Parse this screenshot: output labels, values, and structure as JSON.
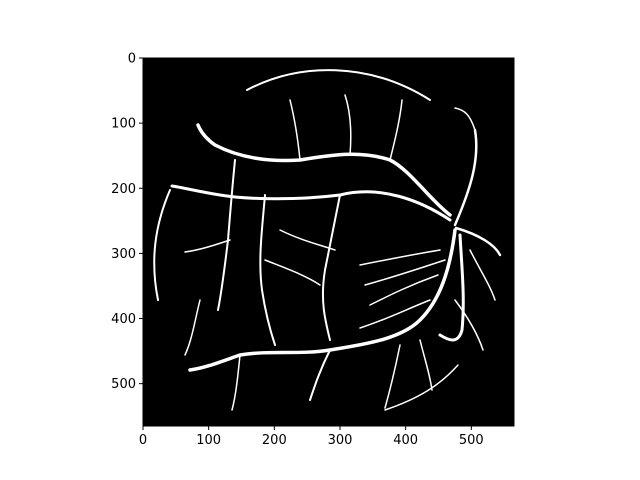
{
  "figure": {
    "x_axis": {
      "range": [
        0,
        565
      ],
      "ticks": [
        {
          "value": 0,
          "label": "0"
        },
        {
          "value": 100,
          "label": "100"
        },
        {
          "value": 200,
          "label": "200"
        },
        {
          "value": 300,
          "label": "300"
        },
        {
          "value": 400,
          "label": "400"
        },
        {
          "value": 500,
          "label": "500"
        }
      ]
    },
    "y_axis": {
      "range": [
        0,
        565
      ],
      "inverted": true,
      "ticks": [
        {
          "value": 0,
          "label": "0"
        },
        {
          "value": 100,
          "label": "100"
        },
        {
          "value": 200,
          "label": "200"
        },
        {
          "value": 300,
          "label": "300"
        },
        {
          "value": 400,
          "label": "400"
        },
        {
          "value": 500,
          "label": "500"
        }
      ]
    },
    "image": {
      "description_type": "binary retinal vessel segmentation mask",
      "background_color": "#000000",
      "foreground_color": "#ffffff"
    }
  }
}
